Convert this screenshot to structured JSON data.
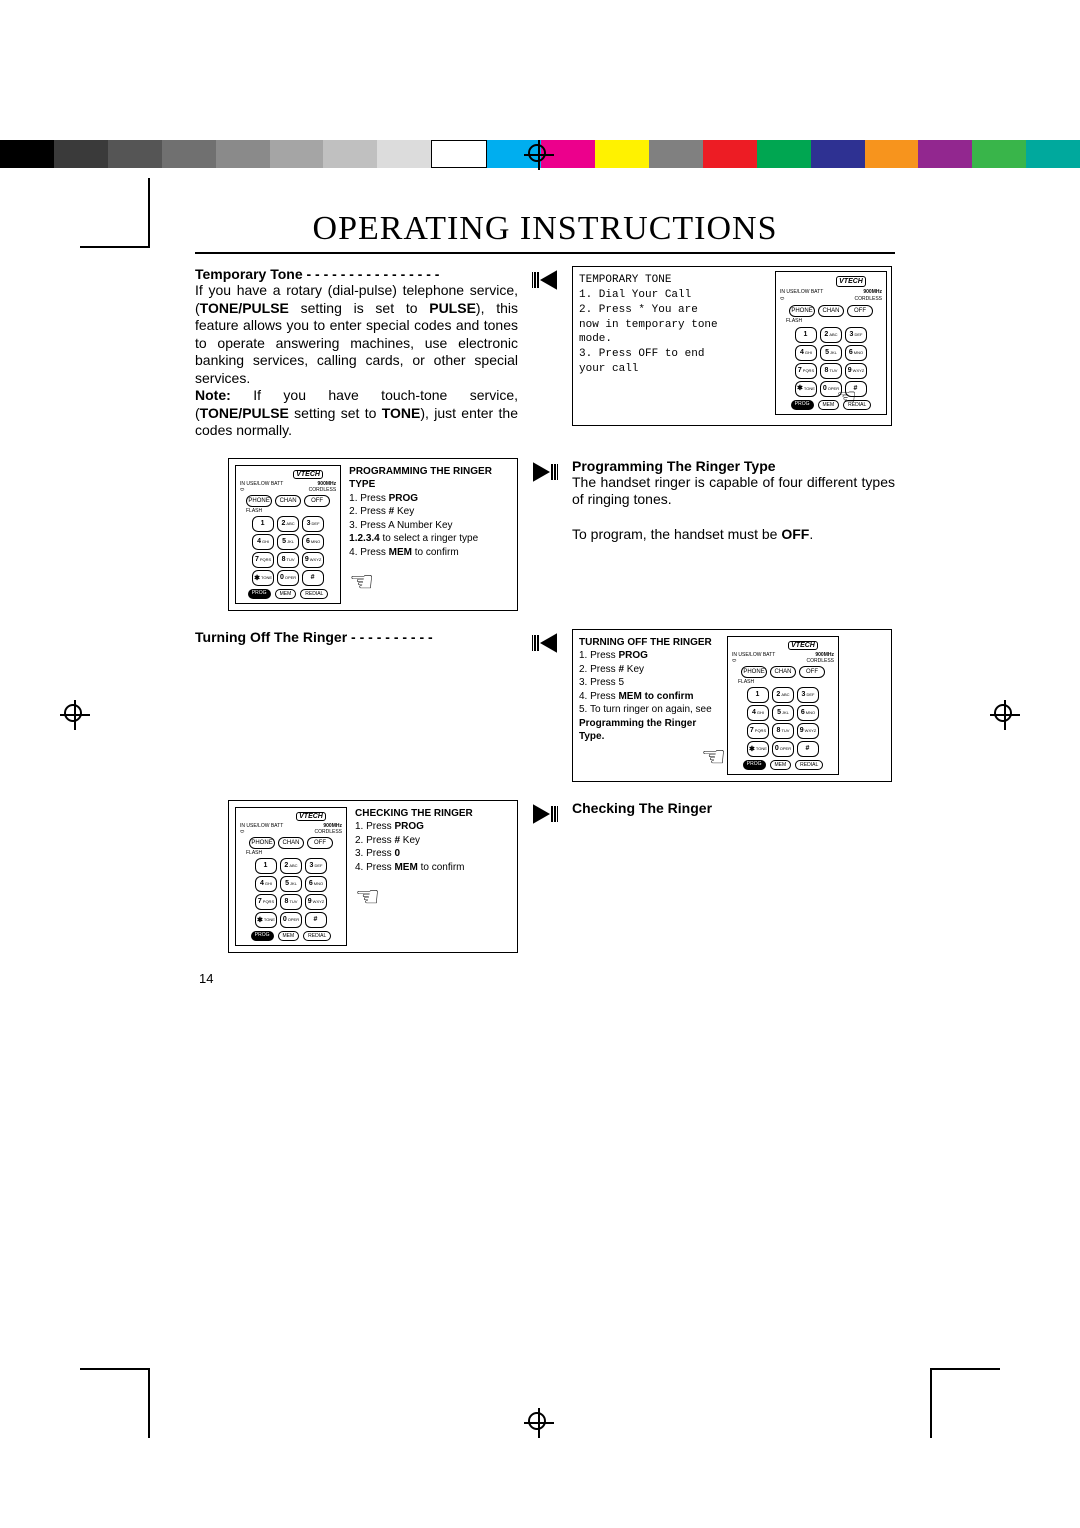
{
  "colorbar": [
    "#000000",
    "#3a3a3a",
    "#555555",
    "#707070",
    "#8a8a8a",
    "#a5a5a5",
    "#c0c0c0",
    "#dcdcdc",
    "#ffffff",
    "#00aeef",
    "#ec008c",
    "#fff200",
    "#808080",
    "#ed1c24",
    "#00a651",
    "#2e3192",
    "#f7941d",
    "#92278f",
    "#39b54a",
    "#00a99d"
  ],
  "title": "OPERATING INSTRUCTIONS",
  "page_number": "14",
  "sec1": {
    "heading": "Temporary Tone - - - - - - - - - - - - - - - -",
    "body_html": "If you have a rotary (dial-pulse) telephone service, (<b>TONE/PULSE</b> setting is set to <b>PULSE</b>), this feature allows you to enter special codes and tones to operate answering machines, use electronic banking services, calling cards, or other special services.<br><b>Note:</b> If you have touch-tone service, (<b>TONE/PULSE</b> setting set to <b>TONE</b>), just enter the codes normally.",
    "screen_lines": [
      "TEMPORARY TONE",
      "1. Dial Your Call",
      "2. Press *  You are",
      "now in temporary tone",
      "mode.",
      "3. Press OFF to end",
      "your call"
    ]
  },
  "sec2": {
    "heading": "Programming The Ringer Type",
    "body_html": "The handset ringer is capable of four different types of ringing tones.<br><br>To program, the handset must be <b>OFF</b>.",
    "instr_title": "PROGRAMMING THE RINGER TYPE",
    "instr": [
      "1. Press <b>PROG</b>",
      "2. Press <b>#</b> Key",
      "3. Press A Number Key",
      "<b>1.2.3.4</b> to select a ringer type",
      "4. Press <b>MEM</b> to confirm"
    ]
  },
  "sec3": {
    "heading": "Turning Off The Ringer - - - - - - - - - -",
    "instr_title": "TURNING OFF THE RINGER",
    "instr": [
      "1. Press <b>PROG</b>",
      "2. Press <b>#</b> Key",
      "3. Press 5",
      "4. Press <b>MEM to confirm</b>",
      "5. To turn ringer on again, see <b>Programming the Ringer Type.</b>"
    ]
  },
  "sec4": {
    "heading": "Checking The Ringer",
    "instr_title": "CHECKING THE RINGER",
    "instr": [
      "1. Press <b>PROG</b>",
      "2. Press <b>#</b> Key",
      "3. Press <b>0</b>",
      "4. Press <b>MEM</b> to confirm"
    ]
  },
  "phone": {
    "logo": "VTECH",
    "inuse": "IN USE/LOW BATT",
    "mhz": "900MHz",
    "cordless": "CORDLESS",
    "btns_top": [
      "PHONE",
      "CHAN",
      "OFF"
    ],
    "flash": "FLASH",
    "keys": [
      [
        "1",
        ""
      ],
      [
        "2",
        "ABC"
      ],
      [
        "3",
        "DEF"
      ],
      [
        "4",
        "GHI"
      ],
      [
        "5",
        "JKL"
      ],
      [
        "6",
        "MNO"
      ],
      [
        "7",
        "PQRS"
      ],
      [
        "8",
        "TUV"
      ],
      [
        "9",
        "WXYZ"
      ],
      [
        "✱",
        "TONE"
      ],
      [
        "0",
        "OPER"
      ],
      [
        "#",
        ""
      ]
    ],
    "bottom": [
      "PROG",
      "MEM",
      "REDIAL"
    ]
  }
}
